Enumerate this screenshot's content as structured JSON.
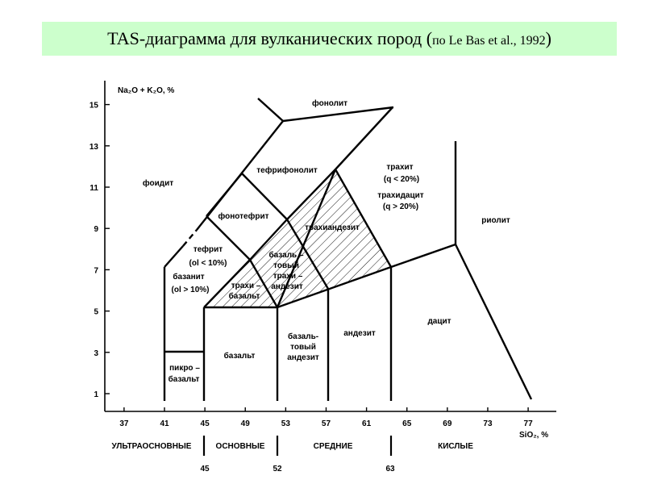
{
  "title": {
    "main": "TAS-диаграмма для вулканических пород (",
    "sub": "по Le Bas et al., 1992",
    "close": ")"
  },
  "chart_data": {
    "type": "classification-diagram",
    "y_axis_label": "Na₂O + K₂O, %",
    "x_axis_label": "SiO₂, %",
    "xlim": [
      35,
      79
    ],
    "ylim": [
      0,
      16
    ],
    "x_ticks": [
      37,
      41,
      45,
      49,
      53,
      57,
      61,
      65,
      69,
      73,
      77
    ],
    "y_ticks": [
      1,
      3,
      5,
      7,
      9,
      11,
      13,
      15
    ],
    "groups": [
      {
        "label": "УЛЬТРАОСНОВНЫЕ",
        "boundary": 45
      },
      {
        "label": "ОСНОВНЫЕ",
        "boundary": 52
      },
      {
        "label": "СРЕДНИЕ",
        "boundary": 63
      },
      {
        "label": "КИСЛЫЕ"
      }
    ],
    "group_boundary_labels": [
      "45",
      "52",
      "63"
    ],
    "fields": [
      {
        "id": "foidit",
        "label": "фоидит"
      },
      {
        "id": "phonolite",
        "label": "фонолит"
      },
      {
        "id": "tephriphonolite",
        "label": "тефрифонолит"
      },
      {
        "id": "phonotephrite",
        "label": "фонотефрит"
      },
      {
        "id": "tephrite",
        "label": "тефрит"
      },
      {
        "id": "tephrite-cond",
        "label": "(ol  < 10%)"
      },
      {
        "id": "basanite",
        "label": "базанит"
      },
      {
        "id": "basanite-cond",
        "label": "(ol  > 10%)"
      },
      {
        "id": "trachyte",
        "label": "трахит"
      },
      {
        "id": "trachyte-cond",
        "label": "(q  < 20%)"
      },
      {
        "id": "trachydacite",
        "label": "трахидацит"
      },
      {
        "id": "trachydacite-cond",
        "label": "(q  > 20%)"
      },
      {
        "id": "trachyandesite",
        "label": "трахиандезит"
      },
      {
        "id": "basaltic-trachyandesite-1",
        "label": "базаль –"
      },
      {
        "id": "basaltic-trachyandesite-2",
        "label": "товый"
      },
      {
        "id": "basaltic-trachyandesite-3",
        "label": "трахи –"
      },
      {
        "id": "basaltic-trachyandesite-4",
        "label": "андезит"
      },
      {
        "id": "trachybasalt-1",
        "label": "трахи –"
      },
      {
        "id": "trachybasalt-2",
        "label": "базальт"
      },
      {
        "id": "rhyolite",
        "label": "риолит"
      },
      {
        "id": "picrobasalt-1",
        "label": "пикро –"
      },
      {
        "id": "picrobasalt-2",
        "label": "базальт"
      },
      {
        "id": "basalt",
        "label": "базальт"
      },
      {
        "id": "basaltic-andesite-1",
        "label": "базаль-"
      },
      {
        "id": "basaltic-andesite-2",
        "label": "товый"
      },
      {
        "id": "basaltic-andesite-3",
        "label": "андезит"
      },
      {
        "id": "andesite",
        "label": "андезит"
      },
      {
        "id": "dacite",
        "label": "дацит"
      }
    ]
  },
  "colors": {
    "title_background": "#ccffcc",
    "line": "#000000",
    "background": "#ffffff"
  }
}
